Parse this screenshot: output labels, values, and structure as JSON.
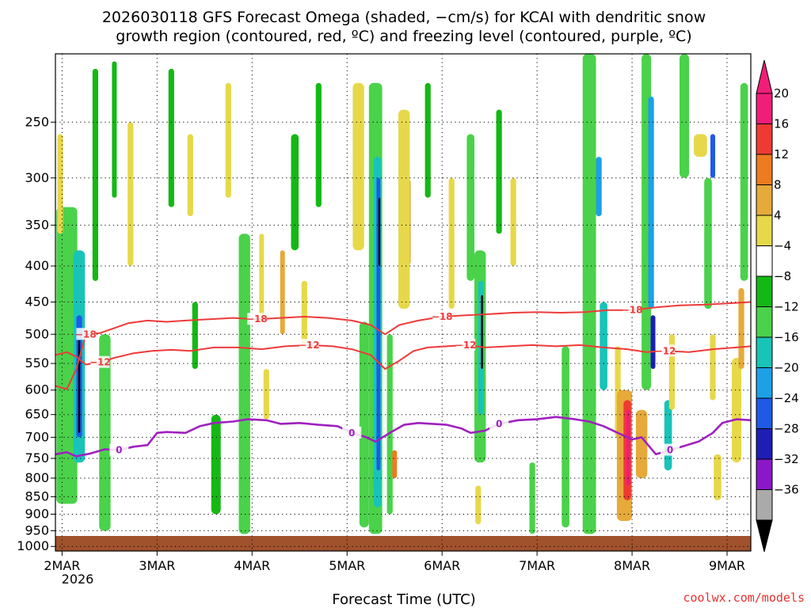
{
  "chart_data": {
    "type": "heatmap",
    "title_line1": "2026030118 GFS Forecast Omega (shaded, −cm/s) for KCAI with dendritic snow",
    "title_line2": "growth region (contoured, red, ºC) and freezing level (contoured, purple, ºC)",
    "xlabel": "Forecast Time (UTC)",
    "ylabel": "",
    "x_ticks": [
      "2MAR",
      "3MAR",
      "4MAR",
      "5MAR",
      "6MAR",
      "7MAR",
      "8MAR",
      "9MAR"
    ],
    "x_tick_days": [
      2,
      3,
      4,
      5,
      6,
      7,
      8,
      9
    ],
    "x_sublabel": "2026",
    "xlim_days": [
      1.93,
      9.25
    ],
    "y_ticks": [
      "250",
      "300",
      "350",
      "400",
      "450",
      "500",
      "550",
      "600",
      "650",
      "700",
      "750",
      "800",
      "850",
      "900",
      "950",
      "1000"
    ],
    "y_tick_values": [
      250,
      300,
      350,
      400,
      450,
      500,
      550,
      600,
      650,
      700,
      750,
      800,
      850,
      900,
      950,
      1000
    ],
    "ylim_hpa": [
      200,
      1015
    ],
    "y_scale": "log-pressure, inverted",
    "grid": "dotted",
    "colorbar": {
      "labels": [
        "20",
        "16",
        "12",
        "8",
        "4",
        "−4",
        "−8",
        "−12",
        "−16",
        "−20",
        "−24",
        "−28",
        "−32",
        "−36"
      ],
      "colors": [
        "#f01e78",
        "#ef3a33",
        "#ee7b1f",
        "#e6aa3a",
        "#e7d84a",
        "#ffffff",
        "#14b814",
        "#4ad24a",
        "#18c3b8",
        "#1ea0e6",
        "#1e5ae6",
        "#1e1eb4",
        "#8a18c8",
        "#aaaaaa"
      ],
      "top_arrow_color": "#f01e78",
      "bottom_arrow_color": "#000000"
    },
    "freezing_level_label": "0",
    "freezing_level_color": "#a020c0",
    "freezing_level": [
      [
        1.93,
        740
      ],
      [
        2.05,
        735
      ],
      [
        2.15,
        745
      ],
      [
        2.3,
        738
      ],
      [
        2.45,
        728
      ],
      [
        2.6,
        730
      ],
      [
        2.75,
        722
      ],
      [
        2.9,
        718
      ],
      [
        3.0,
        690
      ],
      [
        3.1,
        688
      ],
      [
        3.3,
        690
      ],
      [
        3.45,
        675
      ],
      [
        3.6,
        668
      ],
      [
        3.8,
        665
      ],
      [
        3.95,
        660
      ],
      [
        4.15,
        662
      ],
      [
        4.3,
        670
      ],
      [
        4.5,
        668
      ],
      [
        4.7,
        672
      ],
      [
        4.9,
        675
      ],
      [
        5.05,
        690
      ],
      [
        5.2,
        700
      ],
      [
        5.3,
        710
      ],
      [
        5.45,
        690
      ],
      [
        5.6,
        672
      ],
      [
        5.75,
        668
      ],
      [
        5.9,
        670
      ],
      [
        6.05,
        672
      ],
      [
        6.2,
        680
      ],
      [
        6.3,
        690
      ],
      [
        6.45,
        685
      ],
      [
        6.6,
        670
      ],
      [
        6.8,
        662
      ],
      [
        7.0,
        660
      ],
      [
        7.2,
        655
      ],
      [
        7.4,
        660
      ],
      [
        7.55,
        665
      ],
      [
        7.7,
        675
      ],
      [
        7.85,
        690
      ],
      [
        8.0,
        705
      ],
      [
        8.1,
        700
      ],
      [
        8.25,
        740
      ],
      [
        8.4,
        730
      ],
      [
        8.55,
        720
      ],
      [
        8.7,
        710
      ],
      [
        8.85,
        690
      ],
      [
        8.95,
        668
      ],
      [
        9.1,
        660
      ],
      [
        9.25,
        662
      ]
    ],
    "dendritic_contours": [
      {
        "label": "−12",
        "color": "#ee3a3a",
        "points": [
          [
            1.93,
            535
          ],
          [
            2.05,
            530
          ],
          [
            2.15,
            538
          ],
          [
            2.25,
            552
          ],
          [
            2.4,
            548
          ],
          [
            2.55,
            540
          ],
          [
            2.75,
            532
          ],
          [
            2.95,
            528
          ],
          [
            3.15,
            526
          ],
          [
            3.35,
            528
          ],
          [
            3.6,
            522
          ],
          [
            3.85,
            522
          ],
          [
            4.1,
            525
          ],
          [
            4.35,
            520
          ],
          [
            4.6,
            518
          ],
          [
            4.85,
            520
          ],
          [
            5.05,
            525
          ],
          [
            5.25,
            535
          ],
          [
            5.4,
            560
          ],
          [
            5.55,
            545
          ],
          [
            5.7,
            528
          ],
          [
            5.85,
            522
          ],
          [
            6.05,
            520
          ],
          [
            6.25,
            518
          ],
          [
            6.45,
            522
          ],
          [
            6.7,
            520
          ],
          [
            6.95,
            518
          ],
          [
            7.2,
            520
          ],
          [
            7.45,
            518
          ],
          [
            7.7,
            522
          ],
          [
            7.95,
            525
          ],
          [
            8.15,
            530
          ],
          [
            8.35,
            528
          ],
          [
            8.6,
            530
          ],
          [
            8.85,
            525
          ],
          [
            9.1,
            522
          ],
          [
            9.25,
            520
          ]
        ]
      },
      {
        "label": "−18",
        "color": "#ee3a3a",
        "points": [
          [
            1.93,
            592
          ],
          [
            2.05,
            598
          ],
          [
            2.15,
            560
          ],
          [
            2.25,
            500
          ],
          [
            2.4,
            498
          ],
          [
            2.55,
            490
          ],
          [
            2.7,
            482
          ],
          [
            2.9,
            478
          ],
          [
            3.1,
            480
          ],
          [
            3.3,
            478
          ],
          [
            3.55,
            476
          ],
          [
            3.8,
            474
          ],
          [
            4.05,
            476
          ],
          [
            4.3,
            474
          ],
          [
            4.55,
            472
          ],
          [
            4.8,
            474
          ],
          [
            5.05,
            478
          ],
          [
            5.25,
            485
          ],
          [
            5.4,
            500
          ],
          [
            5.55,
            485
          ],
          [
            5.75,
            478
          ],
          [
            6.0,
            472
          ],
          [
            6.25,
            470
          ],
          [
            6.5,
            468
          ],
          [
            6.75,
            466
          ],
          [
            7.0,
            465
          ],
          [
            7.25,
            466
          ],
          [
            7.5,
            465
          ],
          [
            7.75,
            462
          ],
          [
            8.0,
            462
          ],
          [
            8.25,
            458
          ],
          [
            8.5,
            455
          ],
          [
            8.75,
            454
          ],
          [
            9.0,
            452
          ],
          [
            9.25,
            450
          ]
        ]
      }
    ],
    "omega_regions": [
      {
        "day": 2.05,
        "width": 0.22,
        "top": 330,
        "bottom": 870,
        "value": -8
      },
      {
        "day": 2.18,
        "width": 0.12,
        "top": 380,
        "bottom": 760,
        "value": -14
      },
      {
        "day": 2.18,
        "width": 0.06,
        "top": 470,
        "bottom": 700,
        "value": -22
      },
      {
        "day": 2.18,
        "width": 0.02,
        "top": 510,
        "bottom": 690,
        "value": -36
      },
      {
        "day": 2.45,
        "width": 0.12,
        "top": 500,
        "bottom": 950,
        "value": -8
      },
      {
        "day": 2.35,
        "width": 0.06,
        "top": 210,
        "bottom": 420,
        "value": -6
      },
      {
        "day": 2.55,
        "width": 0.05,
        "top": 205,
        "bottom": 320,
        "value": -6
      },
      {
        "day": 1.98,
        "width": 0.06,
        "top": 260,
        "bottom": 360,
        "value": 6
      },
      {
        "day": 2.72,
        "width": 0.06,
        "top": 250,
        "bottom": 400,
        "value": 6
      },
      {
        "day": 3.15,
        "width": 0.06,
        "top": 210,
        "bottom": 330,
        "value": -6
      },
      {
        "day": 3.35,
        "width": 0.06,
        "top": 260,
        "bottom": 340,
        "value": 6
      },
      {
        "day": 3.4,
        "width": 0.06,
        "top": 450,
        "bottom": 560,
        "value": -6
      },
      {
        "day": 3.62,
        "width": 0.1,
        "top": 650,
        "bottom": 900,
        "value": -6
      },
      {
        "day": 3.75,
        "width": 0.06,
        "top": 220,
        "bottom": 320,
        "value": 6
      },
      {
        "day": 3.92,
        "width": 0.12,
        "top": 360,
        "bottom": 960,
        "value": -8
      },
      {
        "day": 4.1,
        "width": 0.05,
        "top": 360,
        "bottom": 480,
        "value": 6
      },
      {
        "day": 4.15,
        "width": 0.06,
        "top": 560,
        "bottom": 660,
        "value": 6
      },
      {
        "day": 4.32,
        "width": 0.05,
        "top": 380,
        "bottom": 500,
        "value": 10
      },
      {
        "day": 4.45,
        "width": 0.08,
        "top": 260,
        "bottom": 380,
        "value": -6
      },
      {
        "day": 4.55,
        "width": 0.06,
        "top": 420,
        "bottom": 520,
        "value": 6
      },
      {
        "day": 4.7,
        "width": 0.06,
        "top": 220,
        "bottom": 330,
        "value": -6
      },
      {
        "day": 5.12,
        "width": 0.12,
        "top": 220,
        "bottom": 380,
        "value": 6
      },
      {
        "day": 5.18,
        "width": 0.1,
        "top": 480,
        "bottom": 940,
        "value": -8
      },
      {
        "day": 5.3,
        "width": 0.14,
        "top": 220,
        "bottom": 960,
        "value": -8
      },
      {
        "day": 5.32,
        "width": 0.08,
        "top": 280,
        "bottom": 880,
        "value": -14
      },
      {
        "day": 5.33,
        "width": 0.04,
        "top": 300,
        "bottom": 780,
        "value": -20
      },
      {
        "day": 5.34,
        "width": 0.02,
        "top": 320,
        "bottom": 400,
        "value": -36
      },
      {
        "day": 5.45,
        "width": 0.06,
        "top": 500,
        "bottom": 900,
        "value": -8
      },
      {
        "day": 5.5,
        "width": 0.05,
        "top": 730,
        "bottom": 800,
        "value": 12
      },
      {
        "day": 5.62,
        "width": 0.1,
        "top": 300,
        "bottom": 400,
        "value": 10
      },
      {
        "day": 5.6,
        "width": 0.12,
        "top": 240,
        "bottom": 460,
        "value": 6
      },
      {
        "day": 5.85,
        "width": 0.06,
        "top": 220,
        "bottom": 320,
        "value": -6
      },
      {
        "day": 6.1,
        "width": 0.06,
        "top": 300,
        "bottom": 460,
        "value": 6
      },
      {
        "day": 6.3,
        "width": 0.08,
        "top": 260,
        "bottom": 420,
        "value": -8
      },
      {
        "day": 6.4,
        "width": 0.12,
        "top": 380,
        "bottom": 760,
        "value": -8
      },
      {
        "day": 6.41,
        "width": 0.06,
        "top": 420,
        "bottom": 650,
        "value": -14
      },
      {
        "day": 6.42,
        "width": 0.02,
        "top": 440,
        "bottom": 560,
        "value": -36
      },
      {
        "day": 6.38,
        "width": 0.06,
        "top": 820,
        "bottom": 930,
        "value": 6
      },
      {
        "day": 6.6,
        "width": 0.06,
        "top": 240,
        "bottom": 360,
        "value": -6
      },
      {
        "day": 6.75,
        "width": 0.06,
        "top": 300,
        "bottom": 400,
        "value": 6
      },
      {
        "day": 6.95,
        "width": 0.06,
        "top": 760,
        "bottom": 960,
        "value": -8
      },
      {
        "day": 7.3,
        "width": 0.08,
        "top": 520,
        "bottom": 940,
        "value": -8
      },
      {
        "day": 7.55,
        "width": 0.14,
        "top": 200,
        "bottom": 960,
        "value": -8
      },
      {
        "day": 7.65,
        "width": 0.06,
        "top": 280,
        "bottom": 340,
        "value": -18
      },
      {
        "day": 7.7,
        "width": 0.08,
        "top": 450,
        "bottom": 600,
        "value": -14
      },
      {
        "day": 7.85,
        "width": 0.06,
        "top": 520,
        "bottom": 700,
        "value": 6
      },
      {
        "day": 7.92,
        "width": 0.16,
        "top": 600,
        "bottom": 920,
        "value": 8
      },
      {
        "day": 7.95,
        "width": 0.08,
        "top": 620,
        "bottom": 860,
        "value": 16
      },
      {
        "day": 7.96,
        "width": 0.04,
        "top": 640,
        "bottom": 820,
        "value": 20
      },
      {
        "day": 8.1,
        "width": 0.12,
        "top": 640,
        "bottom": 800,
        "value": 10
      },
      {
        "day": 8.15,
        "width": 0.1,
        "top": 200,
        "bottom": 600,
        "value": -8
      },
      {
        "day": 8.2,
        "width": 0.06,
        "top": 230,
        "bottom": 460,
        "value": -16
      },
      {
        "day": 8.22,
        "width": 0.05,
        "top": 470,
        "bottom": 560,
        "value": -26
      },
      {
        "day": 8.38,
        "width": 0.08,
        "top": 620,
        "bottom": 780,
        "value": -14
      },
      {
        "day": 8.42,
        "width": 0.06,
        "top": 500,
        "bottom": 640,
        "value": 6
      },
      {
        "day": 8.55,
        "width": 0.1,
        "top": 200,
        "bottom": 300,
        "value": -8
      },
      {
        "day": 8.72,
        "width": 0.14,
        "top": 260,
        "bottom": 280,
        "value": 6
      },
      {
        "day": 8.8,
        "width": 0.08,
        "top": 300,
        "bottom": 460,
        "value": -10
      },
      {
        "day": 8.85,
        "width": 0.06,
        "top": 500,
        "bottom": 620,
        "value": 6
      },
      {
        "day": 8.9,
        "width": 0.08,
        "top": 740,
        "bottom": 860,
        "value": 6
      },
      {
        "day": 8.85,
        "width": 0.05,
        "top": 260,
        "bottom": 300,
        "value": -22
      },
      {
        "day": 9.1,
        "width": 0.1,
        "top": 540,
        "bottom": 760,
        "value": 6
      },
      {
        "day": 9.15,
        "width": 0.06,
        "top": 430,
        "bottom": 560,
        "value": 10
      },
      {
        "day": 9.18,
        "width": 0.08,
        "top": 220,
        "bottom": 420,
        "value": -8
      }
    ]
  },
  "credit": "coolwx.com/models"
}
